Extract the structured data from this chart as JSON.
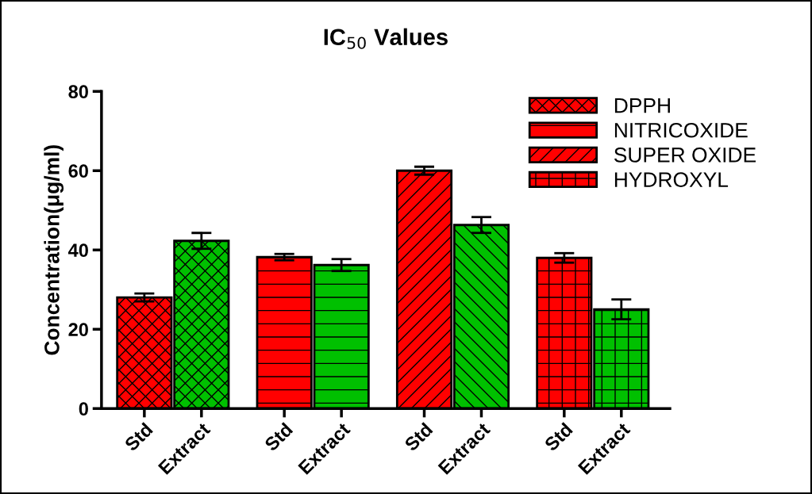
{
  "chart_data": {
    "type": "bar",
    "title": "IC$_{50}$ Values",
    "ylabel": "Concentration(μg/ml)",
    "categories": [
      "Std",
      "Extract",
      "Std",
      "Extract",
      "Std",
      "Extract",
      "Std",
      "Extract"
    ],
    "series": [
      {
        "name": "DPPH",
        "color": "#ff0000",
        "colors": [
          "#ff0000",
          "#00c000",
          null,
          null,
          null,
          null,
          null,
          null
        ],
        "values": [
          28,
          42.3,
          null,
          null,
          null,
          null,
          null,
          null
        ],
        "errors": [
          1,
          2,
          null,
          null,
          null,
          null,
          null,
          null
        ]
      },
      {
        "name": "NITRICOXIDE",
        "color": "#ff0000",
        "colors": [
          null,
          null,
          "#ff0000",
          "#00c000",
          null,
          null,
          null,
          null
        ],
        "values": [
          null,
          null,
          38.2,
          36.2,
          null,
          null,
          null,
          null
        ],
        "errors": [
          null,
          null,
          0.8,
          1.5,
          null,
          null,
          null,
          null
        ]
      },
      {
        "name": "SUPER OXIDE",
        "color": "#ff0000",
        "colors": [
          null,
          null,
          null,
          null,
          "#ff0000",
          "#00c000",
          null,
          null
        ],
        "values": [
          null,
          null,
          null,
          null,
          60,
          46.3,
          null,
          null
        ],
        "errors": [
          null,
          null,
          null,
          null,
          1,
          2,
          null,
          null
        ]
      },
      {
        "name": "HYDROXYL",
        "color": "#ff0000",
        "colors": [
          null,
          null,
          null,
          null,
          null,
          null,
          "#ff0000",
          "#00c000"
        ],
        "values": [
          null,
          null,
          null,
          null,
          null,
          null,
          38,
          25
        ],
        "errors": [
          null,
          null,
          null,
          null,
          null,
          null,
          1.2,
          2.5
        ]
      }
    ],
    "ylim": [
      0,
      80
    ],
    "yticks": [
      0,
      20,
      40,
      60,
      80
    ],
    "grid": false,
    "legend": "top right"
  }
}
